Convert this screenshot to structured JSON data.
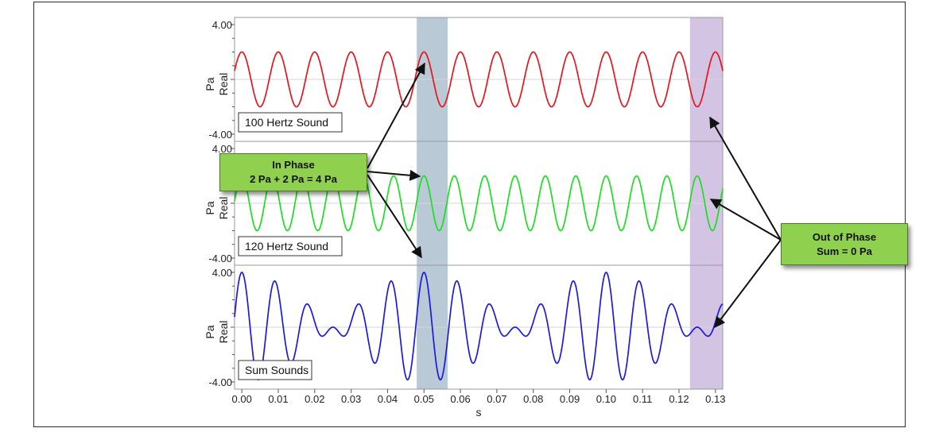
{
  "chart_data": [
    {
      "type": "line",
      "title": "",
      "ylabel": "Real",
      "yunit": "Pa",
      "xlabel": "",
      "ylim": [
        -4.0,
        4.0
      ],
      "xlim": [
        -0.002,
        0.132
      ],
      "y_tick_labels": [
        "4.00",
        "-4.00"
      ],
      "annotation": "100 Hertz Sound",
      "series": [
        {
          "frequency_hz": 100,
          "amplitude_pa": 2,
          "color": "#e8141b",
          "phase_rad": 0
        }
      ]
    },
    {
      "type": "line",
      "title": "",
      "ylabel": "Real",
      "yunit": "Pa",
      "xlabel": "",
      "ylim": [
        -4.0,
        4.0
      ],
      "xlim": [
        -0.002,
        0.132
      ],
      "y_tick_labels": [
        "4.00",
        "-4.00"
      ],
      "annotation": "120 Hertz Sound",
      "series": [
        {
          "frequency_hz": 120,
          "amplitude_pa": 2,
          "color": "#19e01f",
          "phase_rad": 0
        }
      ]
    },
    {
      "type": "line",
      "title": "",
      "ylabel": "Real",
      "yunit": "Pa",
      "xlabel": "s",
      "ylim": [
        -4.0,
        4.0
      ],
      "xlim": [
        -0.002,
        0.132
      ],
      "y_tick_labels": [
        "4.00",
        "-4.00"
      ],
      "annotation": "Sum Sounds",
      "series": [
        {
          "components_hz": [
            100,
            120
          ],
          "amplitude_pa": 2,
          "color": "#1a1ae0",
          "phase_rad": 0
        }
      ]
    }
  ],
  "x_ticks": [
    0.0,
    0.01,
    0.02,
    0.03,
    0.04,
    0.05,
    0.06,
    0.07,
    0.08,
    0.09,
    0.1,
    0.11,
    0.12,
    0.13
  ],
  "x_tick_labels": [
    "0.00",
    "0.01",
    "0.02",
    "0.03",
    "0.04",
    "0.05",
    "0.06",
    "0.07",
    "0.08",
    "0.09",
    "0.10",
    "0.11",
    "0.12",
    "0.13"
  ],
  "highlights": [
    {
      "name": "in-phase",
      "x_range": [
        0.048,
        0.0565
      ],
      "color": "#b9c9d6"
    },
    {
      "name": "out-of-phase",
      "x_range": [
        0.123,
        0.132
      ],
      "color": "#d4c4e4"
    }
  ],
  "callouts": {
    "in_phase": {
      "line1": "In Phase",
      "line2": "2 Pa + 2 Pa  = 4 Pa"
    },
    "out_of_phase": {
      "line1": "Out of Phase",
      "line2": "Sum = 0 Pa"
    }
  }
}
